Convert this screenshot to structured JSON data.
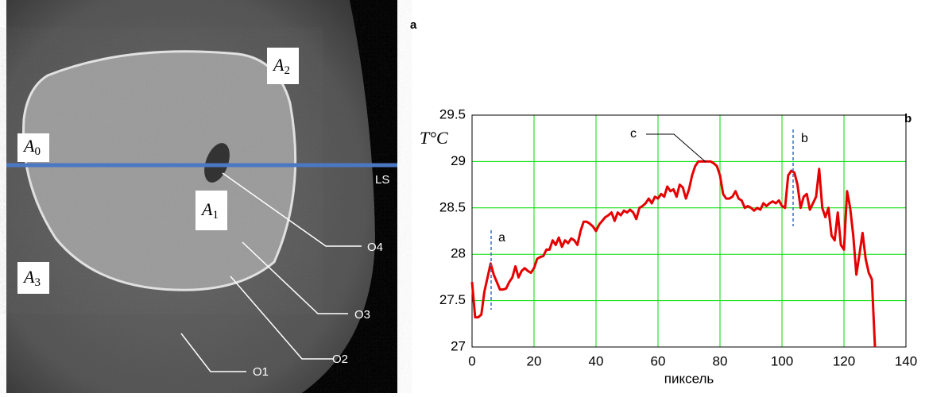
{
  "figure": {
    "panel_labels": [
      "a",
      "b"
    ],
    "image_labels": [
      {
        "base": "A",
        "sub": "0"
      },
      {
        "base": "A",
        "sub": "1"
      },
      {
        "base": "A",
        "sub": "2"
      },
      {
        "base": "A",
        "sub": "3"
      }
    ],
    "object_labels": [
      "O1",
      "O2",
      "O3",
      "O4"
    ],
    "line_label": "LS"
  },
  "chart_data": {
    "type": "line",
    "ylabel": "T°C",
    "xlabel": "пиксель",
    "annotations": [
      "a",
      "b",
      "c"
    ],
    "x": [
      0,
      1,
      2,
      3,
      4,
      5,
      6,
      7,
      8,
      9,
      10,
      11,
      12,
      13,
      14,
      15,
      16,
      17,
      18,
      19,
      20,
      21,
      22,
      23,
      24,
      25,
      26,
      27,
      28,
      29,
      30,
      31,
      32,
      33,
      34,
      35,
      36,
      37,
      38,
      39,
      40,
      41,
      42,
      43,
      44,
      45,
      46,
      47,
      48,
      49,
      50,
      51,
      52,
      53,
      54,
      55,
      56,
      57,
      58,
      59,
      60,
      61,
      62,
      63,
      64,
      65,
      66,
      67,
      68,
      69,
      70,
      71,
      72,
      73,
      74,
      75,
      76,
      77,
      78,
      79,
      80,
      81,
      82,
      83,
      84,
      85,
      86,
      87,
      88,
      89,
      90,
      91,
      92,
      93,
      94,
      95,
      96,
      97,
      98,
      99,
      100,
      101,
      102,
      103,
      104,
      105,
      106,
      107,
      108,
      109,
      110,
      111,
      112,
      113,
      114,
      115,
      116,
      117,
      118,
      119,
      120,
      121,
      122,
      123,
      124,
      125,
      126,
      127,
      128,
      129,
      130
    ],
    "values": [
      27.7,
      27.32,
      27.32,
      27.35,
      27.6,
      27.75,
      27.9,
      27.78,
      27.7,
      27.62,
      27.62,
      27.63,
      27.7,
      27.75,
      27.87,
      27.75,
      27.82,
      27.85,
      27.82,
      27.8,
      27.85,
      27.95,
      27.97,
      27.98,
      28.05,
      28.05,
      28.15,
      28.1,
      28.18,
      28.08,
      28.15,
      28.12,
      28.17,
      28.15,
      28.1,
      28.25,
      28.35,
      28.35,
      28.33,
      28.3,
      28.25,
      28.32,
      28.36,
      28.4,
      28.42,
      28.45,
      28.36,
      28.45,
      28.42,
      28.47,
      28.45,
      28.48,
      28.45,
      28.38,
      28.5,
      28.52,
      28.55,
      28.6,
      28.55,
      28.62,
      28.6,
      28.65,
      28.62,
      28.73,
      28.68,
      28.7,
      28.62,
      28.75,
      28.72,
      28.6,
      28.7,
      28.85,
      28.95,
      29,
      29,
      29,
      29,
      29,
      28.98,
      28.95,
      28.85,
      28.65,
      28.6,
      28.6,
      28.62,
      28.68,
      28.6,
      28.58,
      28.5,
      28.52,
      28.5,
      28.47,
      28.5,
      28.48,
      28.55,
      28.52,
      28.55,
      28.57,
      28.55,
      28.58,
      28.52,
      28.5,
      28.85,
      28.9,
      28.88,
      28.75,
      28.5,
      28.62,
      28.65,
      28.48,
      28.55,
      28.62,
      28.92,
      28.5,
      28.4,
      28.5,
      28.2,
      28.15,
      28.45,
      28.1,
      28.05,
      28.68,
      28.5,
      28.2,
      27.78,
      28,
      28.23,
      27.95,
      27.8,
      27.73,
      27
    ],
    "color": "#e60000",
    "grid_color": "#00dd00",
    "grid": true,
    "xlim": [
      0,
      140
    ],
    "xticks": [
      0,
      20,
      40,
      60,
      80,
      100,
      120,
      140
    ],
    "ylim": [
      27,
      29.5
    ],
    "yticks": [
      27,
      27.5,
      28,
      28.5,
      29,
      29.5
    ]
  }
}
